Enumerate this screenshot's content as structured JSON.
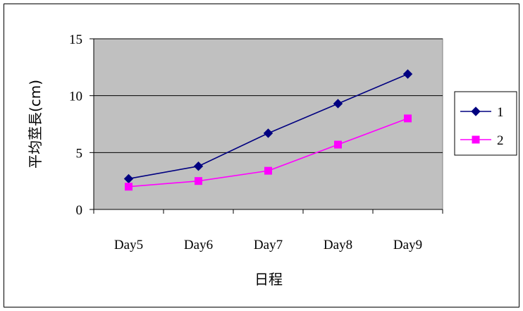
{
  "chart_data": {
    "type": "line",
    "title": "",
    "xlabel": "日程",
    "ylabel": "平均莖長(cm)",
    "categories": [
      "Day5",
      "Day6",
      "Day7",
      "Day8",
      "Day9"
    ],
    "y_ticks": [
      "0",
      "5",
      "10",
      "15"
    ],
    "ylim": [
      0,
      15
    ],
    "grid": true,
    "legend_position": "right",
    "plot_background": "#C0C0C0",
    "series": [
      {
        "name": "1",
        "color": "#000080",
        "marker": "diamond",
        "values": [
          2.7,
          3.8,
          6.7,
          9.3,
          11.9
        ]
      },
      {
        "name": "2",
        "color": "#FF00FF",
        "marker": "square",
        "values": [
          2.0,
          2.5,
          3.4,
          5.7,
          8.0
        ]
      }
    ]
  }
}
